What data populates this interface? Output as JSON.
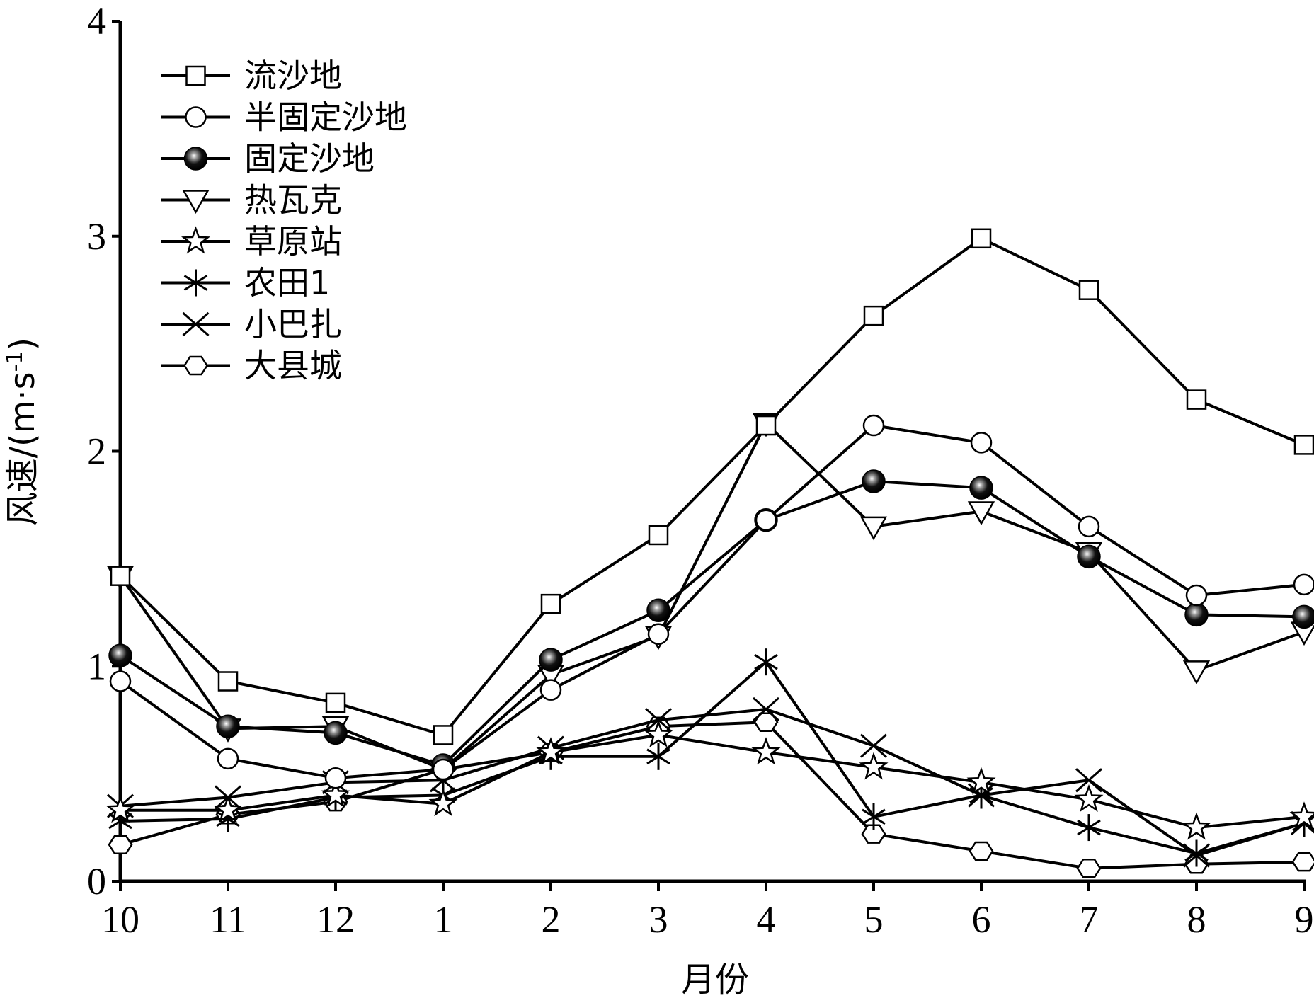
{
  "chart_data": {
    "type": "line",
    "xlabel": "月份",
    "ylabel": "风速/(m·s-1)",
    "ylabel_parts": {
      "main": "风速/(m·s",
      "sup": "-1",
      "close": ")"
    },
    "categories": [
      "10",
      "11",
      "12",
      "1",
      "2",
      "3",
      "4",
      "5",
      "6",
      "7",
      "8",
      "9"
    ],
    "ylim": [
      0,
      4
    ],
    "yticks": [
      "0",
      "1",
      "2",
      "3",
      "4"
    ],
    "grid": false,
    "legend_position": "top-left",
    "series": [
      {
        "name": "流沙地",
        "marker": "square",
        "values": [
          1.42,
          0.93,
          0.83,
          0.68,
          1.29,
          1.61,
          2.12,
          2.63,
          2.99,
          2.75,
          2.24,
          2.03
        ]
      },
      {
        "name": "半固定沙地",
        "marker": "circle-open",
        "values": [
          0.93,
          0.57,
          0.48,
          0.52,
          0.89,
          1.15,
          1.68,
          2.12,
          2.04,
          1.65,
          1.33,
          1.38
        ]
      },
      {
        "name": "固定沙地",
        "marker": "circle-filled",
        "values": [
          1.05,
          0.72,
          0.69,
          0.54,
          1.03,
          1.26,
          1.68,
          1.86,
          1.83,
          1.51,
          1.24,
          1.23
        ]
      },
      {
        "name": "热瓦克",
        "marker": "triangle-down",
        "values": [
          1.42,
          0.71,
          0.72,
          0.52,
          0.96,
          1.14,
          2.13,
          1.65,
          1.72,
          1.53,
          0.98,
          1.16
        ]
      },
      {
        "name": "草原站",
        "marker": "star",
        "values": [
          0.33,
          0.33,
          0.4,
          0.36,
          0.6,
          0.68,
          0.6,
          0.53,
          0.46,
          0.38,
          0.25,
          0.3
        ]
      },
      {
        "name": "农田1",
        "marker": "asterisk",
        "values": [
          0.28,
          0.29,
          0.39,
          0.4,
          0.58,
          0.58,
          1.02,
          0.3,
          0.4,
          0.25,
          0.13,
          0.27
        ]
      },
      {
        "name": "小巴扎",
        "marker": "cross",
        "values": [
          0.35,
          0.39,
          0.46,
          0.47,
          0.62,
          0.75,
          0.8,
          0.63,
          0.4,
          0.47,
          0.12,
          0.27
        ]
      },
      {
        "name": "大县城",
        "marker": "hexagon",
        "values": [
          0.17,
          0.31,
          0.37,
          0.52,
          0.6,
          0.72,
          0.74,
          0.22,
          0.14,
          0.06,
          0.08,
          0.09
        ]
      }
    ]
  }
}
